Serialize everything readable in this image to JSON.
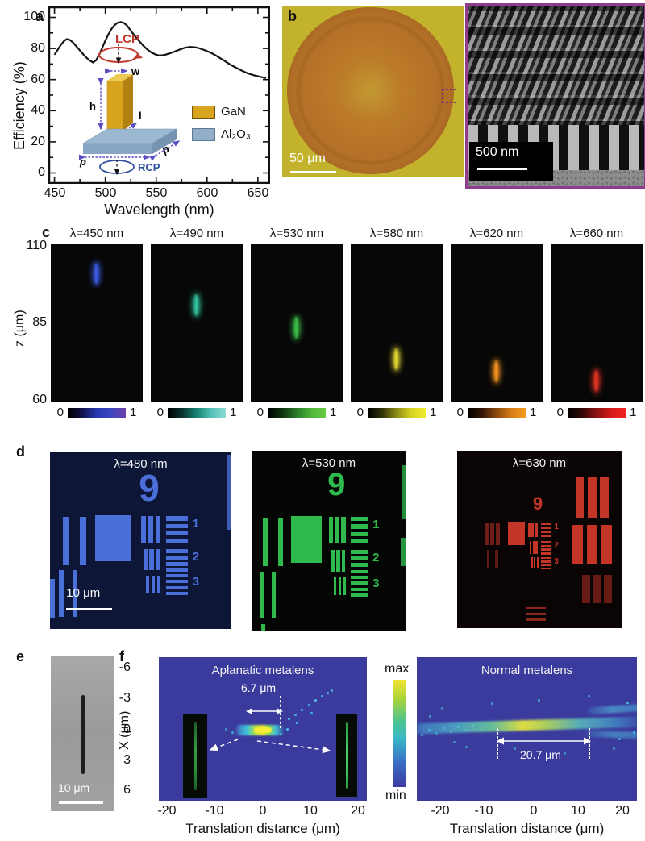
{
  "colors": {
    "gan": "#d9a51e",
    "al2o3": "#92aec9",
    "sem_border": "#8e3d8e",
    "heatmap_bg": "#3b3b9e",
    "lcp_red": "#c0392b",
    "rcp_blue": "#2c4fa0"
  },
  "panel_a": {
    "label": "a",
    "ylabel": "Efficiency (%)",
    "xlabel": "Wavelength (nm)",
    "x_tick_labels": [
      "450",
      "500",
      "550",
      "600",
      "650"
    ],
    "y_tick_labels": [
      "100",
      "80",
      "60",
      "40",
      "20",
      "0"
    ],
    "inset": {
      "lcp": "LCP",
      "rcp": "RCP",
      "w": "w",
      "h": "h",
      "l": "l",
      "p_front": "p",
      "p_side": "p"
    },
    "legend": {
      "gan": "GaN",
      "al2o3": "Al₂O₃"
    }
  },
  "panel_b": {
    "label": "b",
    "scale_optical": "50 μm",
    "scale_sem": "500 nm"
  },
  "panel_c": {
    "label": "c",
    "ylabel": "z (μm)",
    "z_ticks": [
      "110",
      "85",
      "60"
    ],
    "cbar_zero": "0",
    "cbar_one": "1",
    "panels": [
      {
        "title": "λ=450 nm",
        "spot_color": "#3b5ae0",
        "spot_top_pct": 12,
        "colorbar_colors": [
          "#000000",
          "#10124a",
          "#2638b2",
          "#3f46c2",
          "#6c40a8"
        ]
      },
      {
        "title": "λ=490 nm",
        "spot_color": "#2fc09a",
        "spot_top_pct": 32,
        "colorbar_colors": [
          "#000000",
          "#0b332e",
          "#178273",
          "#55c2b8",
          "#8fdcd6"
        ]
      },
      {
        "title": "λ=530 nm",
        "spot_color": "#3bbc46",
        "spot_top_pct": 46,
        "colorbar_colors": [
          "#000000",
          "#0f330f",
          "#2b7d2b",
          "#4fb63b",
          "#66cc44"
        ]
      },
      {
        "title": "λ=580 nm",
        "spot_color": "#e0d832",
        "spot_top_pct": 66,
        "colorbar_colors": [
          "#000000",
          "#333308",
          "#8c8c16",
          "#d6d224",
          "#f0ec30"
        ]
      },
      {
        "title": "λ=620 nm",
        "spot_color": "#f0901e",
        "spot_top_pct": 74,
        "colorbar_colors": [
          "#000000",
          "#331505",
          "#8c4a0e",
          "#d67e16",
          "#f59c1e"
        ]
      },
      {
        "title": "λ=660 nm",
        "spot_color": "#e23324",
        "spot_top_pct": 80,
        "colorbar_colors": [
          "#000000",
          "#330707",
          "#8c1212",
          "#d61c1c",
          "#f02424"
        ]
      }
    ]
  },
  "panel_d": {
    "label": "d",
    "digit": "9",
    "nums": [
      "1",
      "2",
      "3"
    ],
    "scale": "10 μm",
    "panels": [
      {
        "title": "λ=480 nm",
        "color": "#4a6fd8",
        "bg": "#0d1637"
      },
      {
        "title": "λ=530 nm",
        "color": "#2fba4e",
        "bg": "#030603"
      },
      {
        "title": "λ=630 nm",
        "color": "#c23527",
        "bg": "#0a0404"
      }
    ]
  },
  "panel_e": {
    "label": "e",
    "scale": "10 μm"
  },
  "panel_f": {
    "label": "f",
    "left_title": "Aplanatic metalens",
    "right_title": "Normal metalens",
    "left_annotation": "6.7 μm",
    "right_annotation": "20.7 μm",
    "xlabel": "Translation distance (μm)",
    "ylabel": "X (μm)",
    "x_ticks": [
      "-20",
      "-10",
      "0",
      "10",
      "20"
    ],
    "y_ticks": [
      "-6",
      "-3",
      "0",
      "3",
      "6"
    ],
    "cbar_max": "max",
    "cbar_min": "min"
  },
  "chart_data": [
    {
      "type": "line",
      "panel": "a",
      "xlabel": "Wavelength (nm)",
      "ylabel": "Efficiency (%)",
      "xlim": [
        444,
        662
      ],
      "ylim": [
        -7,
        107
      ],
      "x_ticks": [
        450,
        500,
        550,
        600,
        650
      ],
      "x_minor": [
        475,
        525,
        575,
        625
      ],
      "y_ticks": [
        0,
        20,
        40,
        60,
        80,
        100
      ],
      "y_minor": [
        10,
        30,
        50,
        70,
        90
      ],
      "line_color": "#141414",
      "x": [
        450,
        453,
        456,
        459,
        462,
        465,
        468,
        472,
        476,
        480,
        484,
        488,
        491,
        494,
        497,
        500,
        503,
        506,
        509,
        512,
        515,
        518,
        521,
        525,
        529,
        533,
        537,
        541,
        545,
        549,
        553,
        558,
        563,
        568,
        573,
        578,
        583,
        588,
        593,
        598,
        604,
        610,
        616,
        622,
        628,
        634,
        640,
        646,
        652,
        658
      ],
      "y": [
        76,
        79,
        82,
        84.5,
        86,
        85.5,
        84,
        81,
        78,
        75,
        72.5,
        71,
        72.5,
        76,
        80.5,
        85,
        89,
        92.5,
        95,
        96.5,
        97,
        96.5,
        95,
        91.5,
        88,
        85,
        82,
        79.5,
        77.5,
        76.2,
        75.5,
        75.8,
        76.8,
        78,
        79.3,
        80.4,
        81,
        80.8,
        80,
        78.8,
        77.2,
        75,
        72.5,
        70,
        67.8,
        65.8,
        64,
        62.8,
        61.8,
        61
      ]
    },
    {
      "type": "scatter",
      "panel": "c",
      "description": "Focal spot axial position vs wavelength",
      "xlabel": "Wavelength (nm)",
      "ylabel": "z (μm)",
      "ylim": [
        60,
        110
      ],
      "x": [
        450,
        490,
        530,
        580,
        620,
        660
      ],
      "z": [
        104,
        93.5,
        86,
        76,
        72.5,
        69.5
      ]
    },
    {
      "type": "heatmap",
      "panel": "f-left",
      "title": "Aplanatic metalens",
      "xlabel": "Translation distance (μm)",
      "ylabel": "X (μm)",
      "xlim": [
        -22,
        23
      ],
      "ylim": [
        -7.1,
        7.1
      ],
      "x_ticks": [
        -20,
        -10,
        0,
        10,
        20
      ],
      "y_ticks": [
        -6,
        -3,
        0,
        3,
        6
      ],
      "annotation": "6.7 μm",
      "focus_span_um": 6.7
    },
    {
      "type": "heatmap",
      "panel": "f-right",
      "title": "Normal metalens",
      "xlabel": "Translation distance (μm)",
      "xlim": [
        -25,
        25
      ],
      "x_ticks": [
        -20,
        -10,
        0,
        10,
        20
      ],
      "annotation": "20.7 μm",
      "focus_span_um": 20.7
    }
  ]
}
